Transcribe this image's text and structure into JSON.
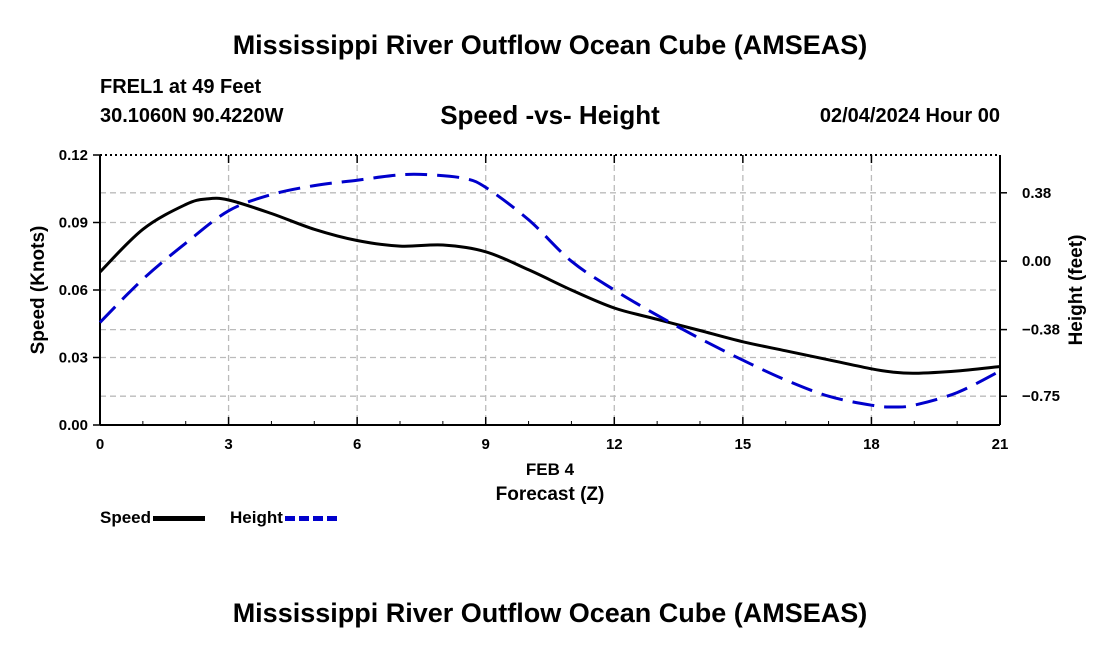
{
  "header": {
    "title": "Mississippi River Outflow Ocean Cube (AMSEAS)",
    "station_name": "FREL1 at 49 Feet",
    "station_coords": "30.1060N  90.4220W",
    "subtitle": "Speed -vs- Height",
    "date": "02/04/2024 Hour 00"
  },
  "footer": {
    "title": "Mississippi River Outflow Ocean Cube (AMSEAS)"
  },
  "legend": {
    "speed_label": "Speed",
    "height_label": "Height"
  },
  "colors": {
    "speed": "#000000",
    "height": "#0000cc",
    "grid": "#bbbbbb"
  },
  "chart_data": {
    "type": "line",
    "title": "Speed -vs- Height",
    "xlabel_date": "FEB 4",
    "xlabel": "Forecast (Z)",
    "ylabel_left": "Speed (Knots)",
    "ylabel_right": "Height (feet)",
    "xlim": [
      0,
      21
    ],
    "x_ticks": [
      0,
      3,
      6,
      9,
      12,
      15,
      18,
      21
    ],
    "x_tick_labels": [
      "0",
      "3",
      "6",
      "9",
      "12",
      "15",
      "18",
      "21"
    ],
    "ylim_left": [
      0,
      0.12
    ],
    "y_left_ticks": [
      0,
      0.03,
      0.06,
      0.09,
      0.12
    ],
    "y_left_tick_labels": [
      "0.00",
      "0.03",
      "0.06",
      "0.09",
      "0.12"
    ],
    "ylim_right": [
      -0.91,
      0.59
    ],
    "y_right_ticks": [
      -0.75,
      -0.38,
      0,
      0.38
    ],
    "y_right_tick_labels": [
      "−0.75",
      "−0.38",
      "0.00",
      "0.38"
    ],
    "grid": true,
    "series": [
      {
        "name": "Speed",
        "axis": "left",
        "style": "solid",
        "x": [
          0,
          1,
          2,
          2.5,
          3,
          4,
          5,
          6,
          7,
          8,
          9,
          10,
          11,
          12,
          13,
          14,
          15,
          16,
          17,
          18,
          18.5,
          19,
          20,
          21
        ],
        "values": [
          0.068,
          0.087,
          0.098,
          0.1005,
          0.1,
          0.094,
          0.087,
          0.082,
          0.0795,
          0.08,
          0.077,
          0.069,
          0.06,
          0.052,
          0.047,
          0.042,
          0.037,
          0.033,
          0.029,
          0.025,
          0.0235,
          0.023,
          0.024,
          0.026
        ]
      },
      {
        "name": "Height",
        "axis": "right",
        "style": "dashed",
        "x": [
          0,
          1,
          2,
          3,
          4,
          5,
          6,
          7,
          7.7,
          8.5,
          9,
          10,
          11,
          12,
          13,
          14,
          15,
          16,
          17,
          18,
          18.5,
          19,
          20,
          21
        ],
        "values": [
          -0.34,
          -0.1,
          0.1,
          0.28,
          0.37,
          0.42,
          0.45,
          0.48,
          0.48,
          0.46,
          0.41,
          0.23,
          0.0,
          -0.16,
          -0.3,
          -0.43,
          -0.55,
          -0.66,
          -0.75,
          -0.8,
          -0.81,
          -0.8,
          -0.73,
          -0.61
        ]
      }
    ]
  }
}
